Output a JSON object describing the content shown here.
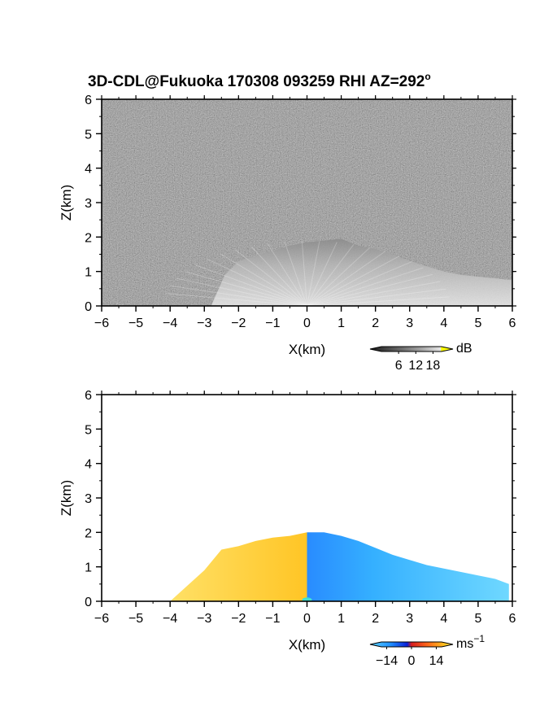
{
  "title": "3D-CDL@Fukuoka 170308 093259 RHI AZ=292",
  "title_degree": "o",
  "chart_data": [
    {
      "type": "heatmap",
      "name": "snr",
      "xlabel": "X(km)",
      "ylabel": "Z(km)",
      "xlim": [
        -6,
        6
      ],
      "ylim": [
        0,
        6
      ],
      "xticks": [
        "-6",
        "-5",
        "-4",
        "-3",
        "-2",
        "-1",
        "0",
        "1",
        "2",
        "3",
        "4",
        "5",
        "6"
      ],
      "yticks": [
        "0",
        "1",
        "2",
        "3",
        "4",
        "5",
        "6"
      ],
      "grid": false,
      "background": "noise",
      "colorbar": {
        "unit": "dB",
        "unit_superscript": "",
        "ticks": [
          "6",
          "12",
          "18"
        ],
        "tick_values": [
          6,
          12,
          18
        ],
        "range": [
          0,
          21
        ],
        "colors": [
          "#1a1a1a",
          "#5a5a5a",
          "#9a9a9a",
          "#dcdcdc",
          "#ffff00"
        ]
      },
      "echo_top_km": [
        [
          -2.4,
          0.9
        ],
        [
          -2.0,
          1.3
        ],
        [
          -1.5,
          1.45
        ],
        [
          -1.0,
          1.6
        ],
        [
          -0.5,
          1.75
        ],
        [
          0.0,
          1.85
        ],
        [
          0.5,
          1.9
        ],
        [
          1.0,
          1.95
        ],
        [
          1.5,
          1.75
        ],
        [
          2.0,
          1.65
        ],
        [
          2.5,
          1.5
        ],
        [
          3.0,
          1.3
        ],
        [
          3.5,
          1.15
        ],
        [
          4.0,
          1.0
        ],
        [
          4.5,
          0.9
        ],
        [
          5.0,
          0.85
        ],
        [
          5.5,
          0.8
        ],
        [
          6.0,
          0.75
        ]
      ],
      "echo_left_edge_km": -2.8
    },
    {
      "type": "heatmap",
      "name": "radial_velocity",
      "xlabel": "X(km)",
      "ylabel": "Z(km)",
      "xlim": [
        -6,
        6
      ],
      "ylim": [
        0,
        6
      ],
      "xticks": [
        "-6",
        "-5",
        "-4",
        "-3",
        "-2",
        "-1",
        "0",
        "1",
        "2",
        "3",
        "4",
        "5",
        "6"
      ],
      "yticks": [
        "0",
        "1",
        "2",
        "3",
        "4",
        "5",
        "6"
      ],
      "grid": false,
      "background": "white",
      "colorbar": {
        "unit": "ms",
        "unit_superscript": "−1",
        "ticks": [
          "−14",
          "0",
          "14"
        ],
        "tick_values": [
          -14,
          0,
          14
        ],
        "range": [
          -17,
          17
        ],
        "colors": [
          "#5fd4ff",
          "#1f8fff",
          "#0a1fd6",
          "#d81e1e",
          "#ff6a1a",
          "#ffc21e",
          "#ffe66b"
        ]
      },
      "echo_top_km": [
        [
          -3.0,
          0.9
        ],
        [
          -2.5,
          1.5
        ],
        [
          -2.0,
          1.6
        ],
        [
          -1.5,
          1.75
        ],
        [
          -1.0,
          1.85
        ],
        [
          -0.5,
          1.9
        ],
        [
          0.0,
          2.0
        ],
        [
          0.5,
          2.0
        ],
        [
          1.0,
          1.9
        ],
        [
          1.5,
          1.75
        ],
        [
          2.0,
          1.55
        ],
        [
          2.5,
          1.35
        ],
        [
          3.0,
          1.2
        ],
        [
          3.5,
          1.05
        ],
        [
          4.0,
          0.95
        ],
        [
          4.5,
          0.85
        ],
        [
          5.0,
          0.75
        ],
        [
          5.5,
          0.65
        ],
        [
          5.9,
          0.5
        ]
      ],
      "echo_left_edge_km": -4.0
    }
  ]
}
